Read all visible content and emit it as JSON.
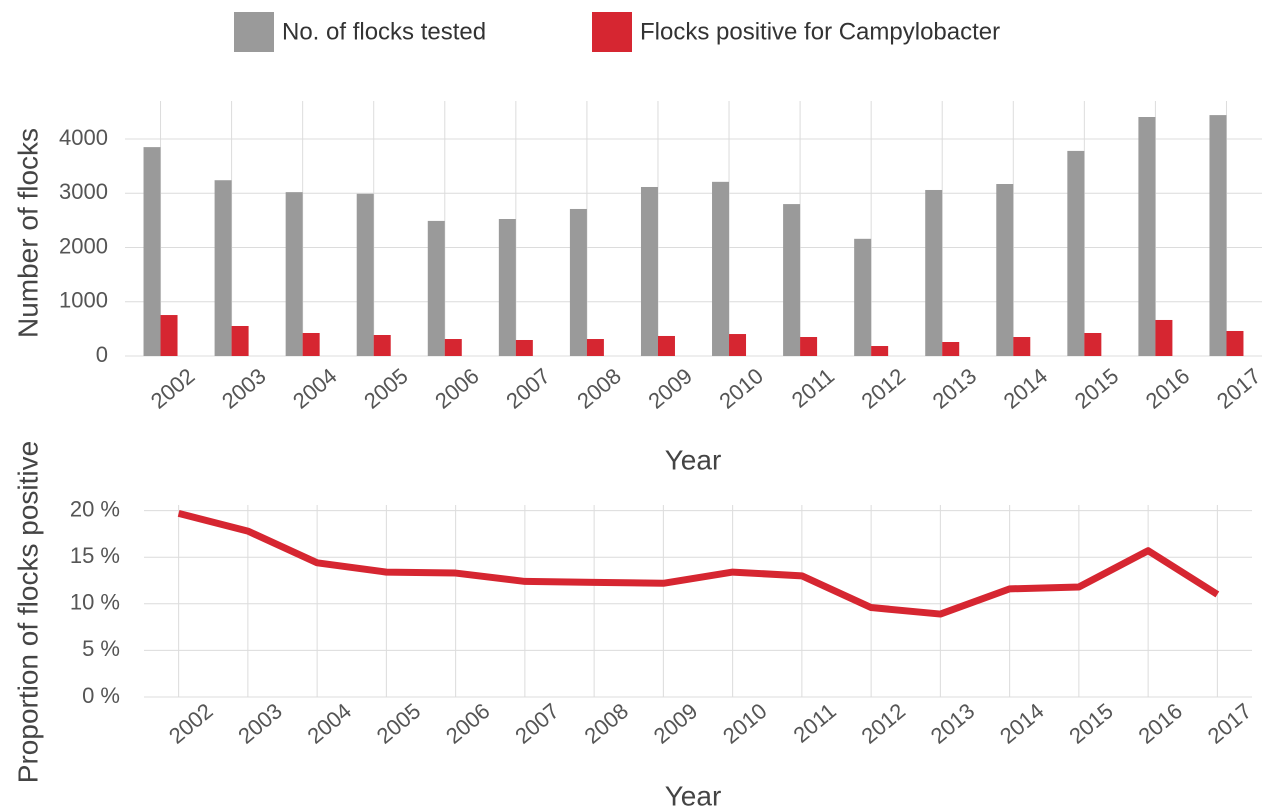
{
  "chart_data": [
    {
      "type": "bar",
      "x_label": "Year",
      "y_label": "Number of flocks",
      "categories": [
        "2002",
        "2003",
        "2004",
        "2005",
        "2006",
        "2007",
        "2008",
        "2009",
        "2010",
        "2011",
        "2012",
        "2013",
        "2014",
        "2015",
        "2016",
        "2017"
      ],
      "series": [
        {
          "name": "No. of flocks tested",
          "color": "#9a9a9a",
          "values": [
            3850,
            3240,
            3020,
            2990,
            2490,
            2525,
            2710,
            3115,
            3210,
            2800,
            2160,
            3060,
            3170,
            3780,
            4405,
            4440
          ]
        },
        {
          "name": "Flocks positive for Campylobacter",
          "color": "#d62631",
          "values": [
            755,
            553,
            424,
            387,
            313,
            295,
            313,
            369,
            405,
            350,
            184,
            258,
            350,
            424,
            664,
            461
          ]
        }
      ],
      "ylim": [
        0,
        4700
      ],
      "yticks": [
        0,
        1000,
        2000,
        3000,
        4000
      ],
      "grid": true,
      "legend": "top"
    },
    {
      "type": "line",
      "x_label": "Year",
      "y_label": "Proportion of flocks positive",
      "categories": [
        "2002",
        "2003",
        "2004",
        "2005",
        "2006",
        "2007",
        "2008",
        "2009",
        "2010",
        "2011",
        "2012",
        "2013",
        "2014",
        "2015",
        "2016",
        "2017"
      ],
      "values": [
        19.7,
        17.8,
        14.4,
        13.4,
        13.3,
        12.4,
        12.3,
        12.2,
        13.4,
        13.0,
        9.6,
        8.9,
        11.6,
        11.8,
        15.7,
        11.0
      ],
      "color": "#d62631",
      "ylim": [
        0,
        20.6
      ],
      "yticks": [
        {
          "value": 0,
          "label": "0 %"
        },
        {
          "value": 5,
          "label": "5 %"
        },
        {
          "value": 10,
          "label": "10 %"
        },
        {
          "value": 15,
          "label": "15 %"
        },
        {
          "value": 20,
          "label": "20 %"
        }
      ],
      "grid": true
    }
  ]
}
